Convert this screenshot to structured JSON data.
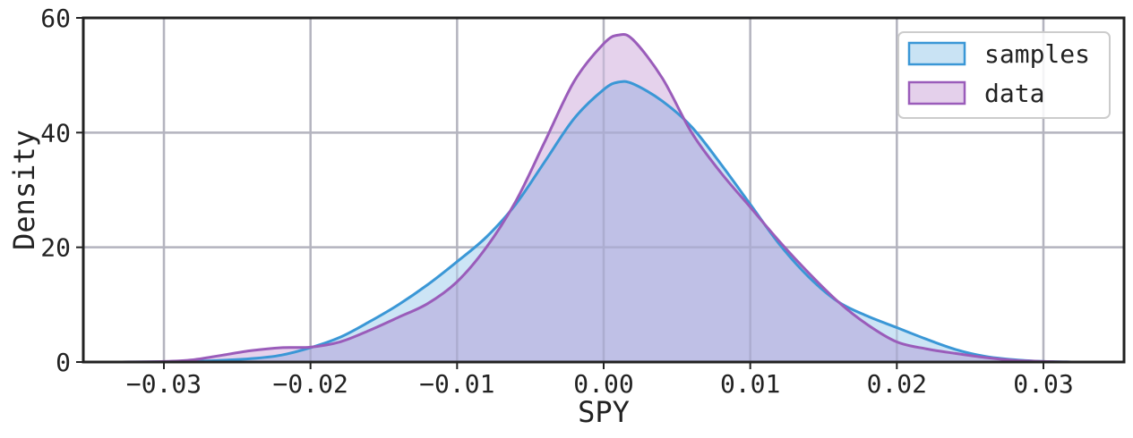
{
  "chart_data": {
    "type": "area",
    "xlabel": "SPY",
    "ylabel": "Density",
    "xlim": [
      -0.0355,
      0.0355
    ],
    "ylim": [
      0,
      60
    ],
    "grid": true,
    "legend_position": "top-right",
    "x_ticks": [
      -0.03,
      -0.02,
      -0.01,
      0.0,
      0.01,
      0.02,
      0.03
    ],
    "x_tick_labels": [
      "−0.03",
      "−0.02",
      "−0.01",
      "0.00",
      "0.01",
      "0.02",
      "0.03"
    ],
    "y_ticks": [
      0,
      20,
      40,
      60
    ],
    "y_tick_labels": [
      "0",
      "20",
      "40",
      "60"
    ],
    "series": [
      {
        "name": "samples",
        "color": "#3a97d6",
        "fill": "#c9e3f4",
        "points": [
          [
            -0.033,
            0.0
          ],
          [
            -0.03,
            0.05
          ],
          [
            -0.027,
            0.2
          ],
          [
            -0.024,
            0.6
          ],
          [
            -0.022,
            1.2
          ],
          [
            -0.02,
            2.5
          ],
          [
            -0.018,
            4.3
          ],
          [
            -0.016,
            7.0
          ],
          [
            -0.014,
            10.0
          ],
          [
            -0.012,
            13.5
          ],
          [
            -0.01,
            17.5
          ],
          [
            -0.008,
            21.8
          ],
          [
            -0.006,
            27.5
          ],
          [
            -0.004,
            35.0
          ],
          [
            -0.002,
            42.5
          ],
          [
            0.0,
            47.5
          ],
          [
            0.001,
            48.8
          ],
          [
            0.002,
            48.5
          ],
          [
            0.004,
            45.5
          ],
          [
            0.006,
            41.0
          ],
          [
            0.008,
            34.5
          ],
          [
            0.01,
            27.5
          ],
          [
            0.012,
            20.5
          ],
          [
            0.014,
            14.8
          ],
          [
            0.016,
            10.5
          ],
          [
            0.018,
            8.0
          ],
          [
            0.02,
            6.0
          ],
          [
            0.022,
            4.0
          ],
          [
            0.024,
            2.2
          ],
          [
            0.026,
            1.0
          ],
          [
            0.028,
            0.4
          ],
          [
            0.03,
            0.1
          ],
          [
            0.032,
            0.0
          ]
        ]
      },
      {
        "name": "data",
        "color": "#9a5cba",
        "fill": "#e4d0eb",
        "points": [
          [
            -0.033,
            0.0
          ],
          [
            -0.03,
            0.1
          ],
          [
            -0.028,
            0.4
          ],
          [
            -0.026,
            1.2
          ],
          [
            -0.024,
            2.0
          ],
          [
            -0.022,
            2.5
          ],
          [
            -0.02,
            2.6
          ],
          [
            -0.018,
            3.5
          ],
          [
            -0.016,
            5.5
          ],
          [
            -0.014,
            7.8
          ],
          [
            -0.012,
            10.2
          ],
          [
            -0.01,
            14.0
          ],
          [
            -0.008,
            20.0
          ],
          [
            -0.006,
            28.0
          ],
          [
            -0.004,
            38.5
          ],
          [
            -0.002,
            49.0
          ],
          [
            0.0,
            55.5
          ],
          [
            0.001,
            57.0
          ],
          [
            0.002,
            56.2
          ],
          [
            0.004,
            49.5
          ],
          [
            0.006,
            40.0
          ],
          [
            0.008,
            33.0
          ],
          [
            0.01,
            27.0
          ],
          [
            0.012,
            21.0
          ],
          [
            0.014,
            15.5
          ],
          [
            0.016,
            10.5
          ],
          [
            0.018,
            6.5
          ],
          [
            0.02,
            3.5
          ],
          [
            0.022,
            2.3
          ],
          [
            0.024,
            1.5
          ],
          [
            0.026,
            0.8
          ],
          [
            0.028,
            0.3
          ],
          [
            0.03,
            0.1
          ],
          [
            0.032,
            0.0
          ]
        ]
      }
    ]
  }
}
